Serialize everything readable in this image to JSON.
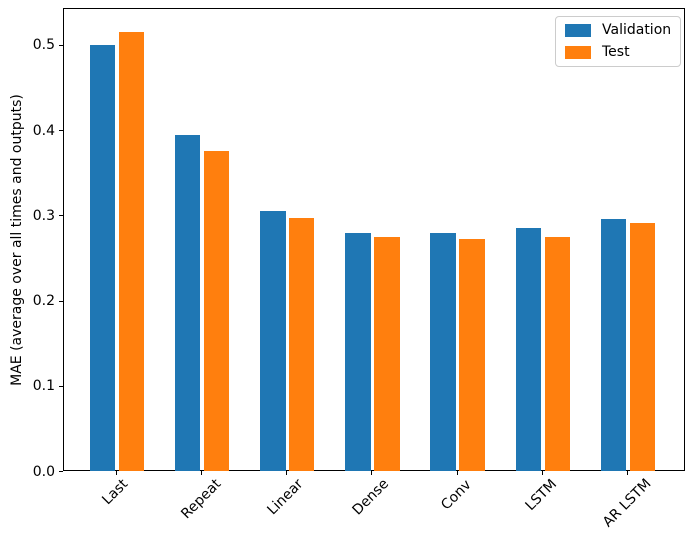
{
  "chart_data": {
    "type": "bar",
    "title": "",
    "xlabel": "",
    "ylabel": "MAE (average over all times and outputs)",
    "categories": [
      "Last",
      "Repeat",
      "Linear",
      "Dense",
      "Conv",
      "LSTM",
      "AR LSTM"
    ],
    "series": [
      {
        "name": "Validation",
        "color": "#1f77b4",
        "values": [
          0.501,
          0.395,
          0.306,
          0.28,
          0.28,
          0.286,
          0.297
        ]
      },
      {
        "name": "Test",
        "color": "#ff7f0e",
        "values": [
          0.516,
          0.377,
          0.298,
          0.276,
          0.274,
          0.276,
          0.292
        ]
      }
    ],
    "ylim": [
      0,
      0.5434
    ],
    "xlim": [
      -0.62,
      6.68
    ],
    "yticks": [
      0.0,
      0.1,
      0.2,
      0.3,
      0.4,
      0.5
    ],
    "ytick_labels": [
      "0.0",
      "0.1",
      "0.2",
      "0.3",
      "0.4",
      "0.5"
    ],
    "xtick_rotation": 45,
    "bar_width": 0.3,
    "bar_offsets": [
      -0.17,
      0.17
    ],
    "grid": false,
    "legend": {
      "position": "upper right",
      "entries": [
        "Validation",
        "Test"
      ]
    },
    "background_color": "#ffffff",
    "spine_color": "#000000"
  }
}
